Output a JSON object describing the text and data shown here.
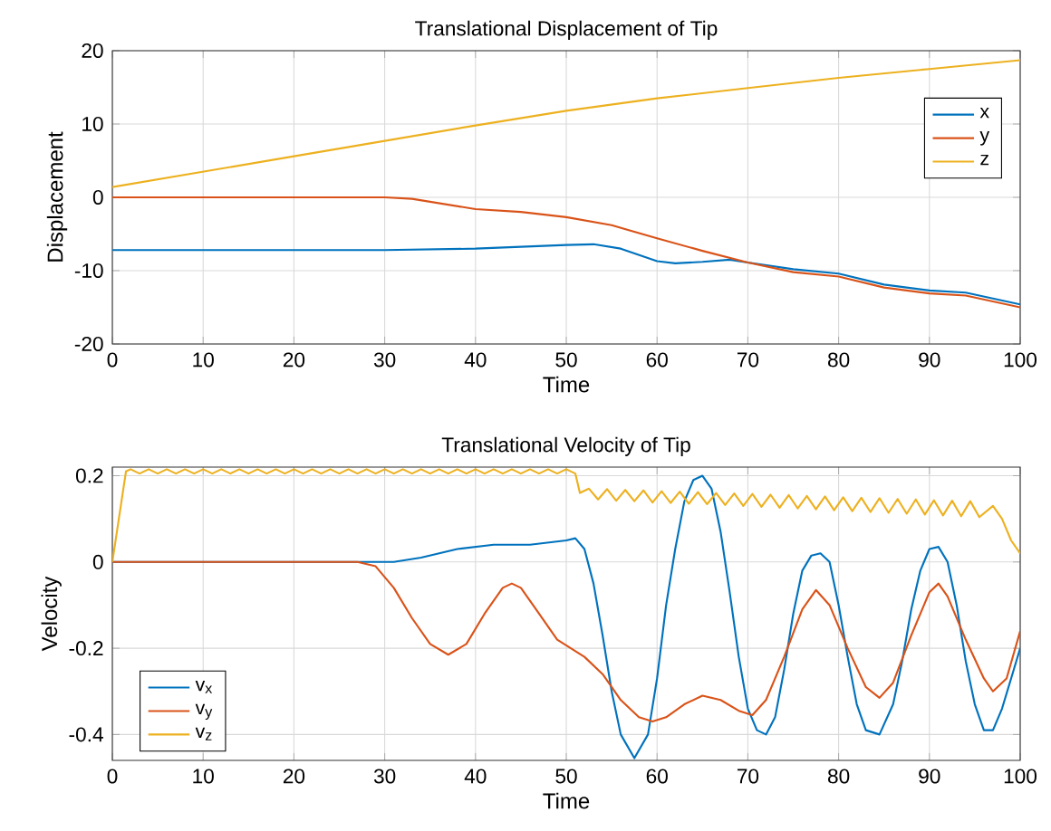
{
  "chart_data": [
    {
      "type": "line",
      "title": "Translational Displacement of Tip",
      "xlabel": "Time",
      "ylabel": "Displacement",
      "xlim": [
        0,
        100
      ],
      "ylim": [
        -20,
        20
      ],
      "xticks": [
        0,
        10,
        20,
        30,
        40,
        50,
        60,
        70,
        80,
        90,
        100
      ],
      "yticks": [
        -20,
        -10,
        0,
        10,
        20
      ],
      "grid": true,
      "legend": "top right",
      "line_style": "solid",
      "marker": "none",
      "series": [
        {
          "name": "x",
          "color": "#0072bd",
          "x": [
            0,
            30,
            40,
            50,
            53,
            56,
            60,
            62,
            65,
            68,
            70,
            75,
            80,
            85,
            90,
            94,
            100
          ],
          "values": [
            -7.2,
            -7.2,
            -7.0,
            -6.5,
            -6.4,
            -7.0,
            -8.7,
            -9.0,
            -8.8,
            -8.5,
            -8.9,
            -9.8,
            -10.4,
            -11.9,
            -12.7,
            -13.0,
            -14.6
          ]
        },
        {
          "name": "y",
          "color": "#d95319",
          "x": [
            0,
            30,
            33,
            40,
            45,
            50,
            55,
            60,
            65,
            70,
            75,
            80,
            85,
            90,
            94,
            100
          ],
          "values": [
            0,
            0,
            -0.2,
            -1.6,
            -2.0,
            -2.7,
            -3.8,
            -5.6,
            -7.3,
            -8.9,
            -10.2,
            -10.8,
            -12.3,
            -13.1,
            -13.4,
            -15.0
          ]
        },
        {
          "name": "z",
          "color": "#edb120",
          "x": [
            0,
            10,
            20,
            30,
            40,
            50,
            60,
            70,
            80,
            90,
            100
          ],
          "values": [
            1.4,
            3.5,
            5.6,
            7.7,
            9.8,
            11.8,
            13.5,
            14.9,
            16.3,
            17.5,
            18.7
          ]
        }
      ]
    },
    {
      "type": "line",
      "title": "Translational Velocity of Tip",
      "xlabel": "Time",
      "ylabel": "Velocity",
      "xlim": [
        0,
        100
      ],
      "ylim": [
        -0.46,
        0.22
      ],
      "xticks": [
        0,
        10,
        20,
        30,
        40,
        50,
        60,
        70,
        80,
        90,
        100
      ],
      "yticks": [
        -0.4,
        -0.2,
        0,
        0.2
      ],
      "grid": true,
      "legend": "bottom left",
      "line_style": "solid",
      "marker": "none",
      "series": [
        {
          "name": "v$_{x}$",
          "color": "#0072bd",
          "x": [
            0,
            28,
            31,
            34,
            38,
            42,
            46,
            50,
            51,
            52,
            53,
            54,
            55,
            56,
            57.5,
            59,
            60,
            61,
            62,
            63,
            64,
            65,
            66,
            67,
            68,
            69,
            70,
            71,
            72,
            73,
            74,
            75,
            76,
            77,
            78,
            79,
            80,
            81,
            82,
            83,
            84.5,
            86,
            87,
            88,
            89,
            90,
            91,
            92,
            93,
            94,
            95,
            96,
            97,
            98,
            99,
            100
          ],
          "values": [
            0,
            0,
            0,
            0.01,
            0.03,
            0.04,
            0.04,
            0.05,
            0.055,
            0.03,
            -0.05,
            -0.17,
            -0.3,
            -0.4,
            -0.455,
            -0.4,
            -0.27,
            -0.1,
            0.03,
            0.14,
            0.19,
            0.2,
            0.17,
            0.07,
            -0.07,
            -0.22,
            -0.34,
            -0.39,
            -0.4,
            -0.36,
            -0.25,
            -0.12,
            -0.02,
            0.015,
            0.02,
            0,
            -0.1,
            -0.22,
            -0.33,
            -0.39,
            -0.4,
            -0.33,
            -0.23,
            -0.11,
            -0.02,
            0.03,
            0.035,
            0,
            -0.1,
            -0.23,
            -0.33,
            -0.39,
            -0.39,
            -0.34,
            -0.27,
            -0.2
          ]
        },
        {
          "name": "v$_{y}$",
          "color": "#d95319",
          "x": [
            0,
            27,
            29,
            31,
            33,
            35,
            37,
            39,
            41,
            43,
            44,
            45,
            47,
            49,
            50.5,
            52,
            54,
            56,
            58,
            59.5,
            61,
            63,
            65,
            67,
            69,
            70.5,
            72,
            74,
            76,
            77.5,
            79,
            81,
            83,
            84.5,
            86,
            88,
            90,
            91,
            92,
            94,
            96,
            97,
            98.5,
            100
          ],
          "values": [
            0,
            0,
            -0.01,
            -0.06,
            -0.13,
            -0.19,
            -0.215,
            -0.19,
            -0.12,
            -0.06,
            -0.05,
            -0.06,
            -0.12,
            -0.18,
            -0.2,
            -0.22,
            -0.26,
            -0.32,
            -0.36,
            -0.37,
            -0.36,
            -0.33,
            -0.31,
            -0.32,
            -0.345,
            -0.355,
            -0.32,
            -0.22,
            -0.11,
            -0.065,
            -0.1,
            -0.2,
            -0.29,
            -0.315,
            -0.28,
            -0.17,
            -0.07,
            -0.05,
            -0.08,
            -0.18,
            -0.27,
            -0.3,
            -0.27,
            -0.16
          ]
        },
        {
          "name": "v$_{z}$",
          "color": "#edb120",
          "x": [
            0,
            1.5,
            2,
            3,
            4,
            5,
            6,
            7,
            8,
            9,
            10,
            11,
            12,
            13,
            14,
            15,
            16,
            17,
            18,
            19,
            20,
            21,
            22,
            23,
            24,
            25,
            26,
            27,
            28,
            29,
            30,
            31,
            32,
            33,
            34,
            35,
            36,
            37,
            38,
            39,
            40,
            41,
            42,
            43,
            44,
            45,
            46,
            47,
            48,
            49,
            50,
            51,
            51.5,
            52.5,
            53.5,
            54.5,
            55.5,
            56.5,
            57.5,
            58.5,
            59.5,
            60.5,
            61.5,
            62.5,
            63.5,
            64.5,
            65.5,
            66.5,
            67.5,
            68.5,
            69.5,
            70.5,
            71.5,
            72.5,
            73.5,
            74.5,
            75.5,
            76.5,
            77.5,
            78.5,
            79.5,
            80.5,
            81.5,
            82.5,
            83.5,
            84.5,
            85.5,
            86.5,
            87.5,
            88.5,
            89.5,
            90.5,
            91.5,
            92.5,
            93.5,
            94.5,
            95.5,
            97,
            98,
            99,
            100
          ],
          "values": [
            0,
            0.21,
            0.215,
            0.205,
            0.215,
            0.205,
            0.215,
            0.205,
            0.215,
            0.205,
            0.215,
            0.205,
            0.215,
            0.205,
            0.215,
            0.205,
            0.215,
            0.205,
            0.215,
            0.205,
            0.215,
            0.205,
            0.215,
            0.205,
            0.215,
            0.205,
            0.215,
            0.205,
            0.215,
            0.205,
            0.215,
            0.205,
            0.215,
            0.205,
            0.215,
            0.205,
            0.215,
            0.205,
            0.215,
            0.205,
            0.215,
            0.205,
            0.215,
            0.205,
            0.215,
            0.205,
            0.215,
            0.205,
            0.215,
            0.205,
            0.215,
            0.205,
            0.16,
            0.17,
            0.145,
            0.169,
            0.142,
            0.167,
            0.141,
            0.166,
            0.138,
            0.164,
            0.137,
            0.163,
            0.135,
            0.162,
            0.134,
            0.16,
            0.132,
            0.159,
            0.13,
            0.158,
            0.128,
            0.156,
            0.126,
            0.155,
            0.124,
            0.153,
            0.122,
            0.152,
            0.12,
            0.15,
            0.118,
            0.149,
            0.116,
            0.148,
            0.114,
            0.146,
            0.112,
            0.145,
            0.11,
            0.143,
            0.108,
            0.142,
            0.106,
            0.141,
            0.104,
            0.13,
            0.1,
            0.05,
            0.02
          ]
        }
      ]
    }
  ]
}
